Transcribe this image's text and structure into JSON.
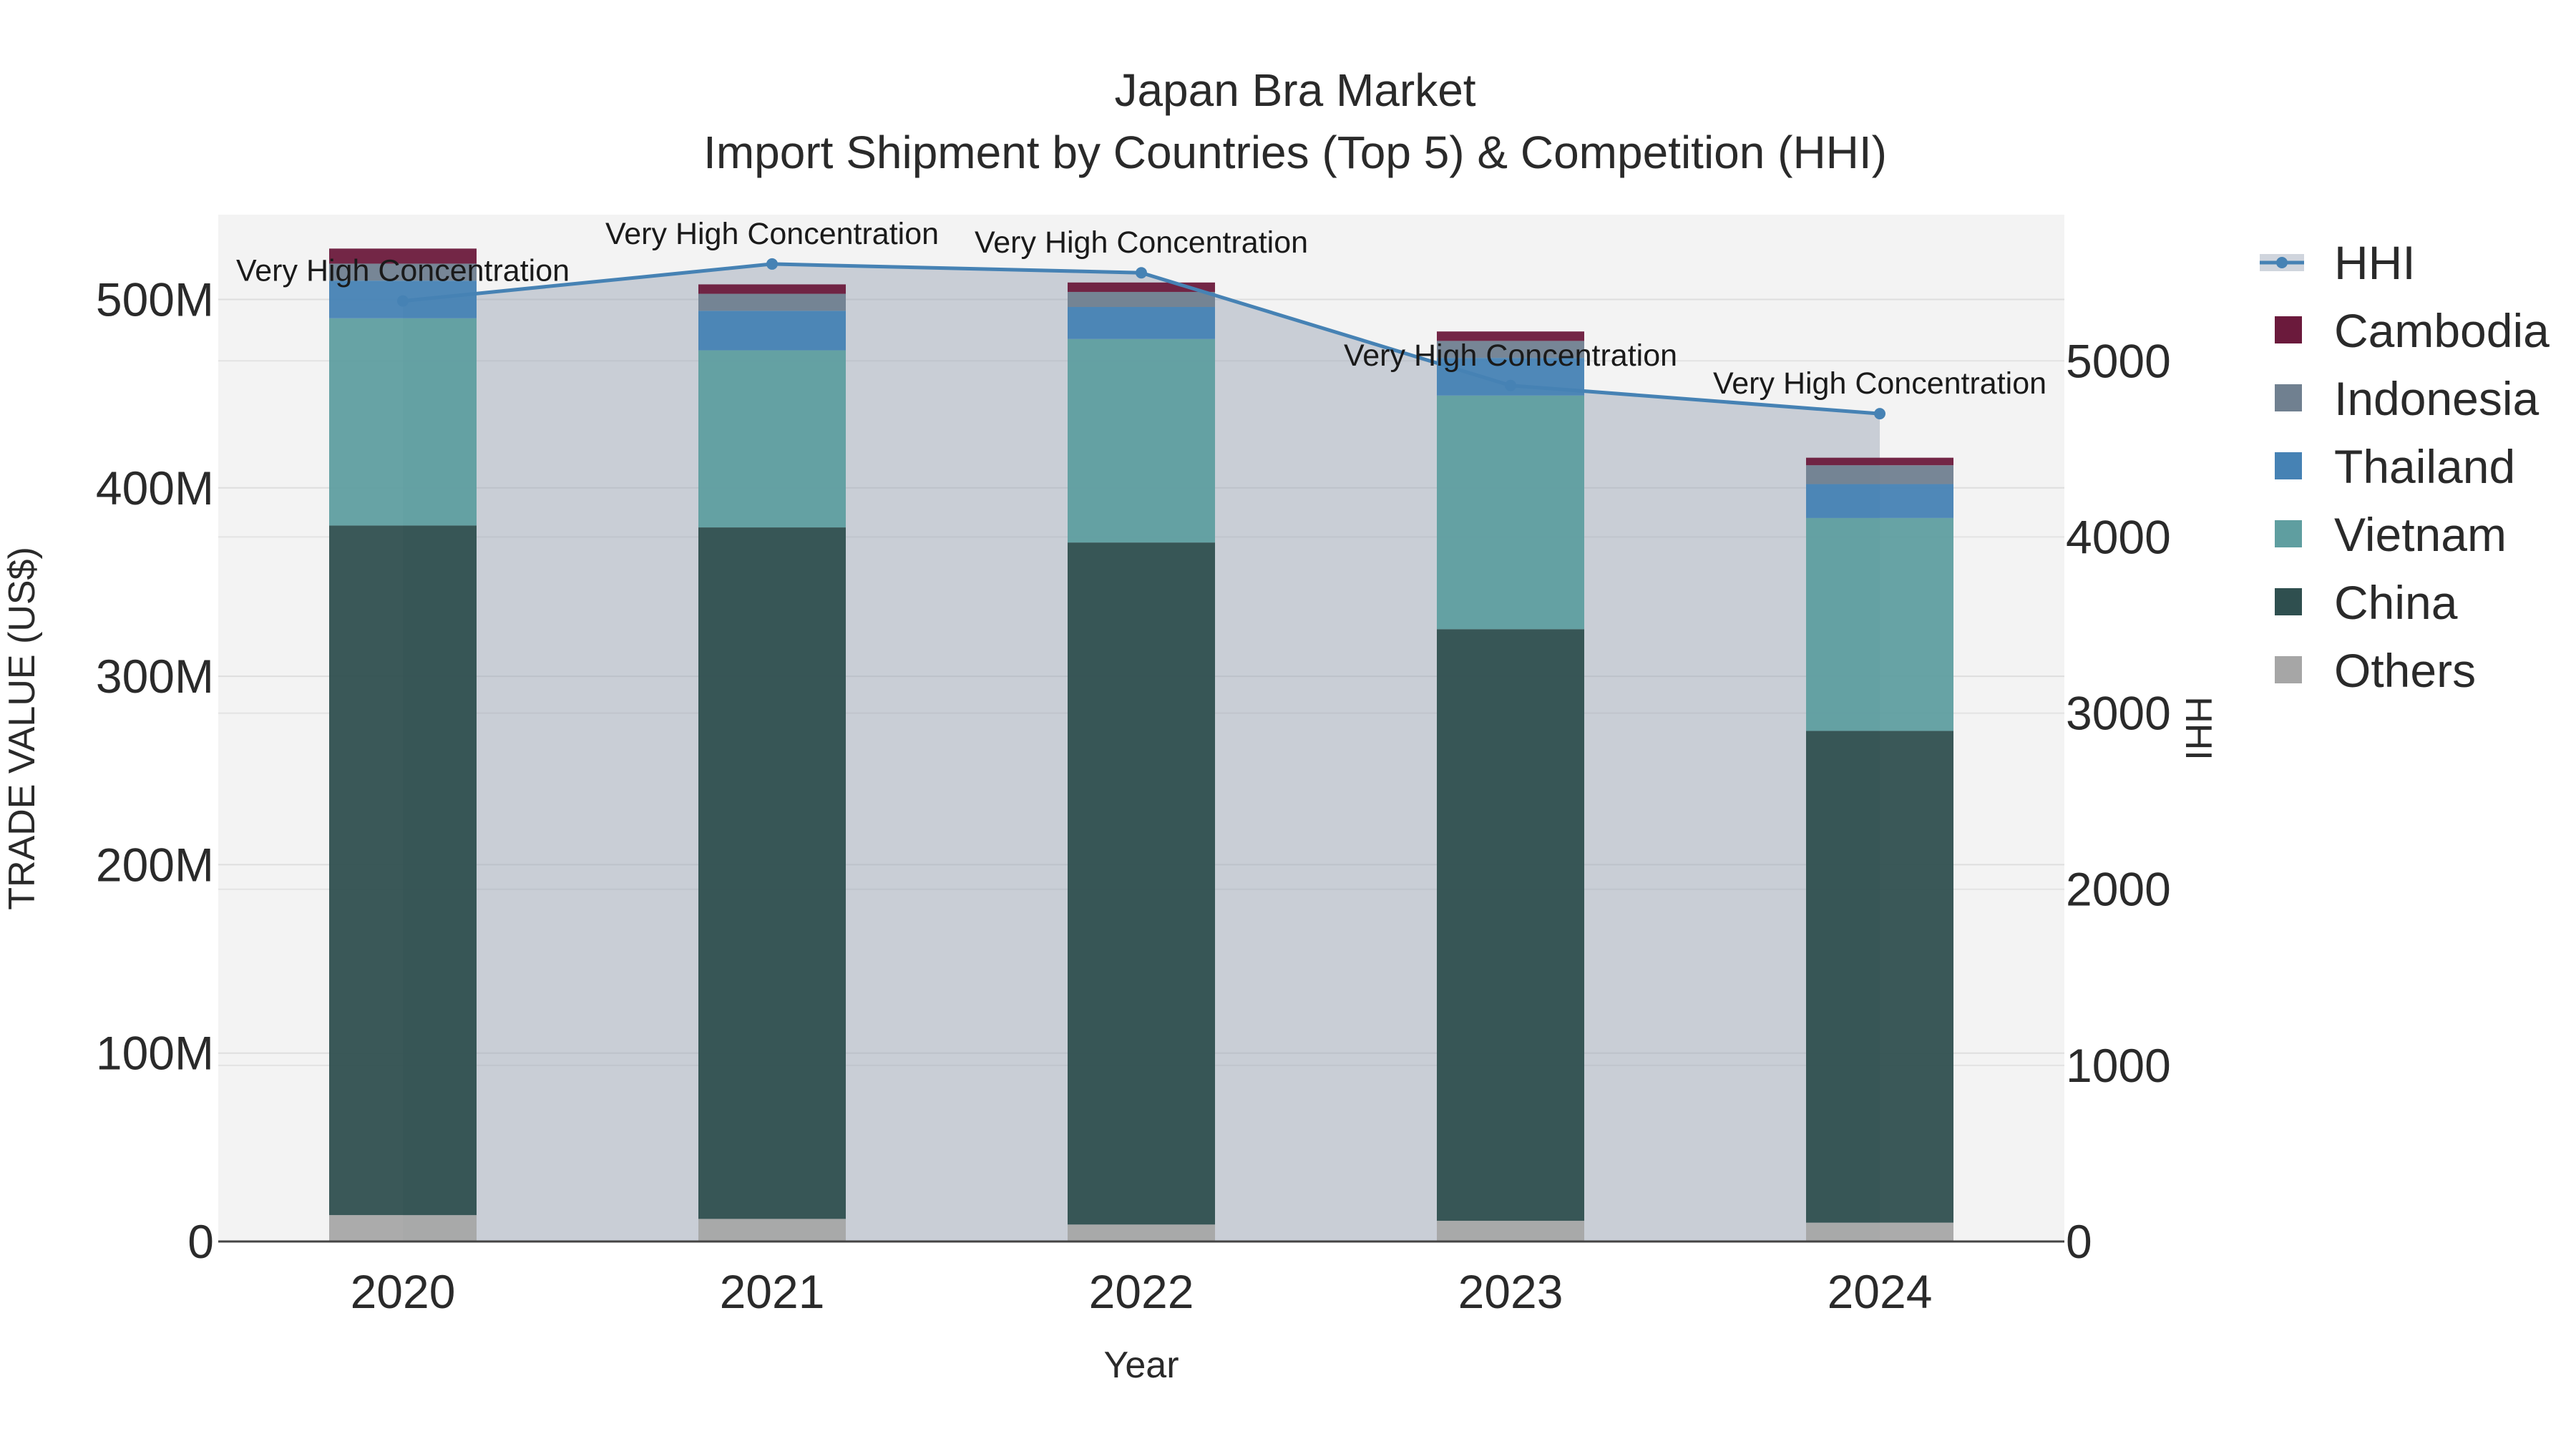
{
  "chart_data": {
    "type": "bar",
    "title": "Japan Bra Market",
    "subtitle": "Import Shipment by Countries (Top 5) & Competition (HHI)",
    "xlabel": "Year",
    "ylabel": "TRADE VALUE (US$)",
    "y2label": "HHI",
    "categories": [
      "2020",
      "2021",
      "2022",
      "2023",
      "2024"
    ],
    "ylim": [
      0,
      545000000
    ],
    "y2lim": [
      0,
      5830
    ],
    "yticks": [
      0,
      100000000,
      200000000,
      300000000,
      400000000,
      500000000
    ],
    "yticklabels": [
      "0",
      "100M",
      "200M",
      "300M",
      "400M",
      "500M"
    ],
    "y2ticks": [
      0,
      1000,
      2000,
      3000,
      4000,
      5000
    ],
    "y2ticklabels": [
      "0",
      "1000",
      "2000",
      "3000",
      "4000",
      "5000"
    ],
    "series": [
      {
        "name": "Others",
        "color": "#a6a6a6",
        "values": [
          14000000,
          12000000,
          9000000,
          11000000,
          10000000
        ]
      },
      {
        "name": "China",
        "color": "#2f4f4f",
        "values": [
          366000000,
          367000000,
          362000000,
          314000000,
          261000000
        ]
      },
      {
        "name": "Vietnam",
        "color": "#5f9ea0",
        "values": [
          110000000,
          94000000,
          108000000,
          124000000,
          113000000
        ]
      },
      {
        "name": "Thailand",
        "color": "#4682b4",
        "values": [
          20000000,
          21000000,
          17000000,
          20000000,
          18000000
        ]
      },
      {
        "name": "Indonesia",
        "color": "#708090",
        "values": [
          9000000,
          9000000,
          8000000,
          9000000,
          10000000
        ]
      },
      {
        "name": "Cambodia",
        "color": "#6b1a3c",
        "values": [
          8000000,
          5000000,
          5000000,
          5000000,
          4000000
        ]
      }
    ],
    "hhi": {
      "name": "HHI",
      "color": "#4682b4",
      "values": [
        5340,
        5550,
        5500,
        4860,
        4700
      ],
      "labels": [
        "Very High Concentration",
        "Very High Concentration",
        "Very High Concentration",
        "Very High Concentration",
        "Very High Concentration"
      ]
    },
    "legend": [
      "HHI",
      "Cambodia",
      "Indonesia",
      "Thailand",
      "Vietnam",
      "China",
      "Others"
    ],
    "legend_position": "right",
    "grid": true
  }
}
